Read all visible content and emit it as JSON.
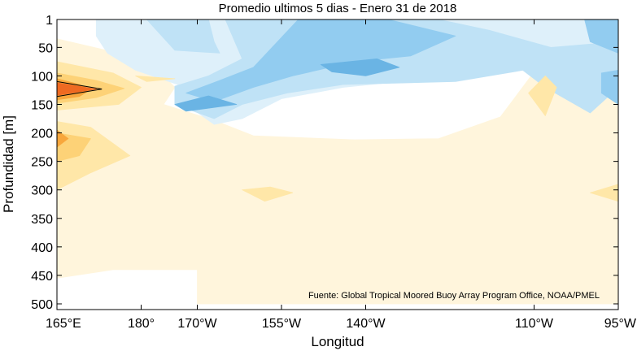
{
  "chart_data": {
    "type": "heatmap",
    "title": "Promedio ultimos 5 dias - Enero 31 de 2018",
    "xlabel": "Longitud",
    "ylabel": "Profundidad [m]",
    "source_note": "Fuente: Global Tropical Moored Buoy Array Program Office, NOAA/PMEL",
    "x_ticks": [
      {
        "value": 165,
        "label": "165°E"
      },
      {
        "value": 180,
        "label": "180°"
      },
      {
        "value": 190,
        "label": "170°W"
      },
      {
        "value": 205,
        "label": "155°W"
      },
      {
        "value": 220,
        "label": "140°W"
      },
      {
        "value": 250,
        "label": "110°W"
      },
      {
        "value": 265,
        "label": "95°W"
      }
    ],
    "y_ticks": [
      {
        "value": 1,
        "label": "1"
      },
      {
        "value": 50,
        "label": "50"
      },
      {
        "value": 100,
        "label": "100"
      },
      {
        "value": 150,
        "label": "150"
      },
      {
        "value": 200,
        "label": "200"
      },
      {
        "value": 250,
        "label": "250"
      },
      {
        "value": 300,
        "label": "300"
      },
      {
        "value": 350,
        "label": "350"
      },
      {
        "value": 400,
        "label": "400"
      },
      {
        "value": 450,
        "label": "450"
      },
      {
        "value": 500,
        "label": "500"
      }
    ],
    "xlim": [
      165,
      265
    ],
    "ylim": [
      1,
      510
    ],
    "y_reversed": true,
    "colors": {
      "cool_4": "#6ab4e4",
      "cool_3": "#92ccf0",
      "cool_2": "#bfe2f6",
      "cool_1": "#def0fa",
      "neutral": "#ffffff",
      "warm_1": "#fff5dc",
      "warm_2": "#ffe7a8",
      "warm_3": "#fdd277",
      "warm_4": "#f8a73c",
      "warm_5": "#ef6a22"
    },
    "regions": [
      {
        "level": "warm_1",
        "points": [
          [
            165,
            35
          ],
          [
            176,
            60
          ],
          [
            182,
            80
          ],
          [
            186,
            120
          ],
          [
            184,
            150
          ],
          [
            193,
            178
          ],
          [
            200,
            205
          ],
          [
            218,
            212
          ],
          [
            233,
            210
          ],
          [
            244,
            172
          ],
          [
            251,
            80
          ],
          [
            262,
            62
          ],
          [
            265,
            60
          ],
          [
            265,
            500
          ],
          [
            190,
            500
          ],
          [
            190,
            440
          ],
          [
            175,
            440
          ],
          [
            165,
            455
          ]
        ]
      },
      {
        "level": "cool_1",
        "points": [
          [
            172,
            1
          ],
          [
            265,
            1
          ],
          [
            265,
            62
          ],
          [
            254,
            78
          ],
          [
            236,
            100
          ],
          [
            216,
            120
          ],
          [
            205,
            140
          ],
          [
            198,
            175
          ],
          [
            193,
            185
          ],
          [
            188,
            150
          ],
          [
            188,
            120
          ],
          [
            179,
            90
          ],
          [
            174,
            60
          ],
          [
            172,
            30
          ]
        ]
      },
      {
        "level": "cool_2",
        "points": [
          [
            181,
            1
          ],
          [
            192,
            1
          ],
          [
            193,
            40
          ],
          [
            194,
            60
          ],
          [
            186,
            55
          ]
        ]
      },
      {
        "level": "cool_2",
        "points": [
          [
            195,
            1
          ],
          [
            233,
            1
          ],
          [
            242,
            20
          ],
          [
            253,
            50
          ],
          [
            265,
            40
          ],
          [
            265,
            120
          ],
          [
            260,
            165
          ],
          [
            252,
            120
          ],
          [
            248,
            90
          ],
          [
            236,
            110
          ],
          [
            216,
            115
          ],
          [
            206,
            130
          ],
          [
            198,
            150
          ],
          [
            193,
            175
          ],
          [
            186,
            150
          ],
          [
            186,
            118
          ],
          [
            192,
            100
          ],
          [
            198,
            70
          ]
        ]
      },
      {
        "level": "cool_3",
        "points": [
          [
            208,
            1
          ],
          [
            224,
            1
          ],
          [
            236,
            30
          ],
          [
            228,
            65
          ],
          [
            218,
            75
          ],
          [
            207,
            100
          ],
          [
            200,
            120
          ],
          [
            193,
            145
          ],
          [
            188,
            130
          ],
          [
            194,
            108
          ],
          [
            200,
            85
          ]
        ]
      },
      {
        "level": "cool_3",
        "points": [
          [
            259,
            1
          ],
          [
            265,
            1
          ],
          [
            265,
            60
          ],
          [
            260,
            40
          ]
        ]
      },
      {
        "level": "cool_3",
        "points": [
          [
            262,
            95
          ],
          [
            265,
            90
          ],
          [
            265,
            150
          ],
          [
            262,
            130
          ]
        ]
      },
      {
        "level": "cool_4",
        "points": [
          [
            212,
            80
          ],
          [
            222,
            70
          ],
          [
            226,
            85
          ],
          [
            220,
            100
          ],
          [
            214,
            93
          ]
        ]
      },
      {
        "level": "cool_4",
        "points": [
          [
            186,
            150
          ],
          [
            192,
            135
          ],
          [
            197,
            150
          ],
          [
            188,
            162
          ]
        ]
      },
      {
        "level": "warm_2",
        "points": [
          [
            165,
            75
          ],
          [
            175,
            95
          ],
          [
            180,
            120
          ],
          [
            176,
            150
          ],
          [
            165,
            160
          ]
        ]
      },
      {
        "level": "warm_2",
        "points": [
          [
            165,
            180
          ],
          [
            171,
            190
          ],
          [
            178,
            240
          ],
          [
            171,
            270
          ],
          [
            165,
            300
          ]
        ]
      },
      {
        "level": "warm_2",
        "points": [
          [
            249,
            130
          ],
          [
            252,
            100
          ],
          [
            254,
            120
          ],
          [
            252,
            170
          ]
        ]
      },
      {
        "level": "warm_2",
        "points": [
          [
            198,
            300
          ],
          [
            203,
            295
          ],
          [
            207,
            305
          ],
          [
            202,
            320
          ]
        ]
      },
      {
        "level": "warm_2",
        "points": [
          [
            260,
            305
          ],
          [
            265,
            290
          ],
          [
            265,
            320
          ]
        ]
      },
      {
        "level": "warm_2",
        "points": [
          [
            179,
            100
          ],
          [
            186,
            105
          ],
          [
            181,
            110
          ]
        ]
      },
      {
        "level": "warm_3",
        "points": [
          [
            165,
            95
          ],
          [
            172,
            108
          ],
          [
            177,
            122
          ],
          [
            172,
            138
          ],
          [
            165,
            148
          ]
        ]
      },
      {
        "level": "warm_3",
        "points": [
          [
            165,
            200
          ],
          [
            171,
            210
          ],
          [
            169,
            240
          ],
          [
            165,
            250
          ]
        ]
      },
      {
        "level": "warm_4",
        "points": [
          [
            165,
            105
          ],
          [
            169,
            115
          ],
          [
            171,
            124
          ],
          [
            169,
            136
          ],
          [
            165,
            142
          ]
        ]
      },
      {
        "level": "warm_4",
        "points": [
          [
            165,
            195
          ],
          [
            167,
            210
          ],
          [
            165,
            225
          ]
        ]
      },
      {
        "level": "warm_5",
        "points": [
          [
            165,
            112
          ],
          [
            172,
            123
          ],
          [
            165,
            134
          ]
        ]
      }
    ],
    "contour_lines": [
      {
        "points": [
          [
            165,
            110
          ],
          [
            173,
            123
          ],
          [
            165,
            136
          ]
        ]
      }
    ]
  }
}
